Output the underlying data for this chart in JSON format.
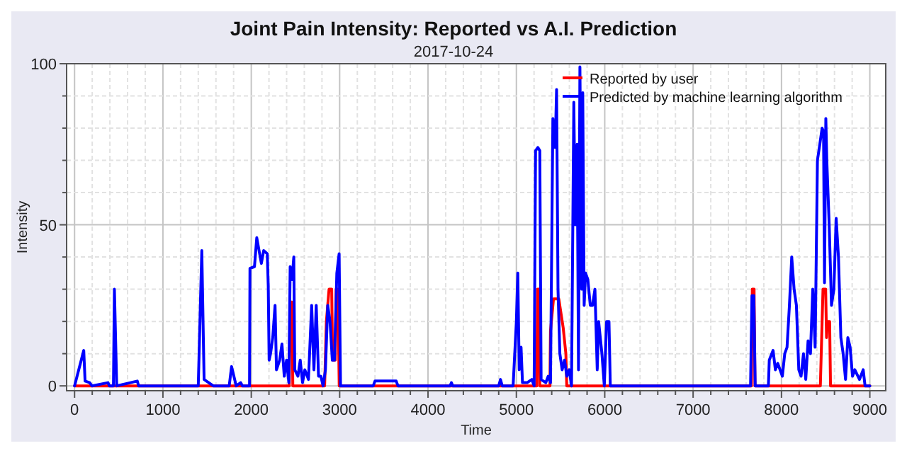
{
  "chart_data": {
    "type": "line",
    "title": "Joint Pain Intensity: Reported vs A.I. Prediction",
    "subtitle": "2017-10-24",
    "xlabel": "Time",
    "ylabel": "Intensity",
    "xlim": [
      -90,
      9180
    ],
    "ylim": [
      -1.5,
      100
    ],
    "xticks": [
      0,
      {
        "value": 200,
        "label": null
      },
      {
        "value": 400,
        "label": null
      },
      {
        "value": 600,
        "label": null
      },
      {
        "value": 800,
        "label": null
      },
      1000,
      {
        "value": 1200,
        "label": null
      },
      {
        "value": 1400,
        "label": null
      },
      {
        "value": 1600,
        "label": null
      },
      {
        "value": 1800,
        "label": null
      },
      2000,
      {
        "value": 2200,
        "label": null
      },
      {
        "value": 2400,
        "label": null
      },
      {
        "value": 2600,
        "label": null
      },
      {
        "value": 2800,
        "label": null
      },
      3000,
      {
        "value": 3200,
        "label": null
      },
      {
        "value": 3400,
        "label": null
      },
      {
        "value": 3600,
        "label": null
      },
      {
        "value": 3800,
        "label": null
      },
      4000,
      {
        "value": 4200,
        "label": null
      },
      {
        "value": 4400,
        "label": null
      },
      {
        "value": 4600,
        "label": null
      },
      {
        "value": 4800,
        "label": null
      },
      5000,
      {
        "value": 5200,
        "label": null
      },
      {
        "value": 5400,
        "label": null
      },
      {
        "value": 5600,
        "label": null
      },
      {
        "value": 5800,
        "label": null
      },
      6000,
      {
        "value": 6200,
        "label": null
      },
      {
        "value": 6400,
        "label": null
      },
      {
        "value": 6600,
        "label": null
      },
      {
        "value": 6800,
        "label": null
      },
      7000,
      {
        "value": 7200,
        "label": null
      },
      {
        "value": 7400,
        "label": null
      },
      {
        "value": 7600,
        "label": null
      },
      {
        "value": 7800,
        "label": null
      },
      8000,
      {
        "value": 8200,
        "label": null
      },
      {
        "value": 8400,
        "label": null
      },
      {
        "value": 8600,
        "label": null
      },
      {
        "value": 8800,
        "label": null
      },
      9000
    ],
    "yticks": [
      0,
      {
        "value": 10,
        "label": null
      },
      {
        "value": 20,
        "label": null
      },
      {
        "value": 30,
        "label": null
      },
      {
        "value": 40,
        "label": null
      },
      50,
      {
        "value": 60,
        "label": null
      },
      {
        "value": 70,
        "label": null
      },
      {
        "value": 80,
        "label": null
      },
      {
        "value": 90,
        "label": null
      },
      100
    ],
    "grid": true,
    "legend": "top right",
    "marker": "none",
    "line_style": "solid",
    "series": [
      {
        "name": "Reported by user",
        "color": "#ff0000",
        "x": [
          0,
          2430,
          2440,
          2461,
          2470,
          2830,
          2850,
          2880,
          2910,
          2920,
          2950,
          2960,
          2980,
          2995,
          5230,
          5240,
          5255,
          5265,
          5380,
          5386,
          5420,
          5480,
          5530,
          5560,
          5570,
          7660,
          7670,
          7690,
          7700,
          8440,
          8455,
          8470,
          8500,
          8510,
          8520,
          8545,
          8555,
          9000
        ],
        "values": [
          0,
          0,
          26,
          26,
          0,
          0,
          20,
          30,
          30,
          8,
          8,
          30,
          30,
          0,
          0,
          30,
          30,
          0,
          0,
          17,
          27,
          27,
          18,
          10,
          0,
          0,
          30,
          30,
          0,
          0,
          15,
          30,
          30,
          15,
          20,
          20,
          0,
          0
        ]
      },
      {
        "name": "Predicted by machine learning algorithm",
        "color": "#0000ff",
        "x": [
          0,
          104,
          119,
          171,
          197,
          378,
          394,
          440,
          451,
          477,
          710,
          725,
          1400,
          1440,
          1466,
          1518,
          1570,
          1750,
          1777,
          1803,
          1829,
          1880,
          1900,
          1980,
          1985,
          2036,
          2062,
          2088,
          2114,
          2140,
          2181,
          2192,
          2202,
          2218,
          2243,
          2269,
          2285,
          2321,
          2347,
          2373,
          2399,
          2425,
          2440,
          2461,
          2481,
          2492,
          2528,
          2554,
          2580,
          2606,
          2647,
          2683,
          2709,
          2735,
          2761,
          2787,
          2813,
          2839,
          2865,
          2891,
          2917,
          2942,
          2968,
          2994,
          3010,
          3380,
          3400,
          3640,
          3660,
          4250,
          4265,
          4280,
          4800,
          4820,
          4840,
          4963,
          5000,
          5016,
          5032,
          5053,
          5069,
          5122,
          5175,
          5201,
          5217,
          5243,
          5265,
          5280,
          5333,
          5360,
          5386,
          5413,
          5439,
          5455,
          5471,
          5492,
          5518,
          5545,
          5571,
          5598,
          5624,
          5650,
          5666,
          5688,
          5703,
          5719,
          5740,
          5751,
          5767,
          5783,
          5809,
          5836,
          5862,
          5889,
          5915,
          5931,
          5968,
          5995,
          6021,
          6048,
          6063,
          7650,
          7666,
          7687,
          7703,
          7852,
          7862,
          7905,
          7931,
          7958,
          8010,
          8037,
          8063,
          8090,
          8116,
          8143,
          8169,
          8196,
          8222,
          8249,
          8275,
          8301,
          8328,
          8354,
          8381,
          8407,
          8434,
          8460,
          8476,
          8487,
          8502,
          8513,
          8540,
          8566,
          8593,
          8619,
          8645,
          8672,
          8698,
          8725,
          8751,
          8777,
          8804,
          8830,
          8883,
          8925,
          8946,
          9000
        ],
        "values": [
          0,
          11,
          1.5,
          1,
          0,
          1,
          0,
          0,
          30,
          0,
          1.5,
          0,
          0,
          42,
          2,
          1,
          0,
          0,
          6,
          3,
          0,
          1,
          0,
          0,
          36.5,
          37,
          46,
          42,
          38,
          42,
          41,
          31,
          8,
          10,
          15,
          25,
          5,
          8,
          13,
          3,
          8,
          1,
          37,
          33,
          40,
          5,
          3,
          8,
          1,
          5,
          2,
          25,
          5,
          25,
          3,
          3,
          0,
          5,
          25,
          20,
          8,
          8,
          35,
          41,
          0,
          0,
          1.5,
          1.5,
          0,
          0,
          1,
          0,
          0,
          2,
          0,
          0,
          20,
          35,
          5,
          12,
          1,
          1,
          2,
          0,
          73,
          74,
          73,
          2,
          1,
          3,
          1,
          83,
          74,
          92,
          30,
          10,
          5,
          8,
          3,
          5,
          0,
          88,
          50,
          75,
          5,
          99,
          30,
          91,
          25,
          35,
          33,
          25,
          25,
          30,
          5,
          20,
          10,
          0,
          20,
          20,
          0,
          0,
          28,
          28,
          0,
          0,
          8,
          11,
          5,
          7,
          3,
          10,
          12,
          25,
          40,
          30,
          25,
          5,
          3,
          10,
          2,
          14,
          10,
          30,
          12,
          70,
          75,
          80,
          79,
          32,
          83,
          70,
          50,
          25,
          30,
          52,
          40,
          15,
          10,
          2,
          15,
          12,
          3,
          5,
          2,
          5,
          0,
          0
        ]
      }
    ]
  }
}
